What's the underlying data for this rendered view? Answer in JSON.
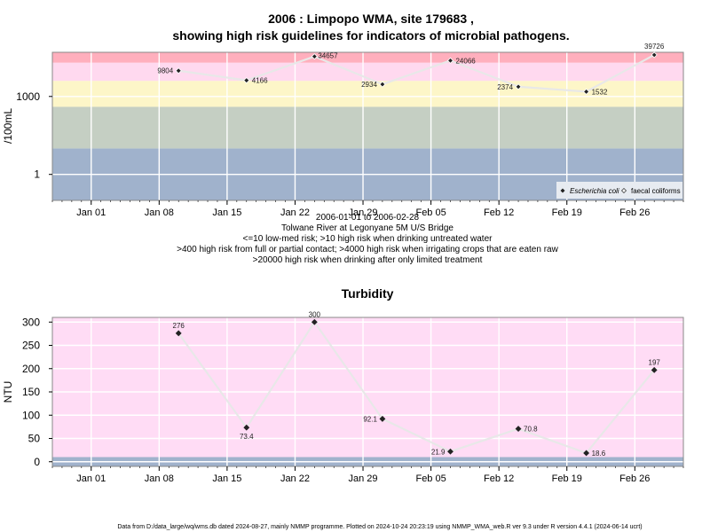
{
  "chart_data": [
    {
      "type": "scatter",
      "title_line1": "2006 : Limpopo WMA, site 179683 ,",
      "title_line2": "showing high risk guidelines for indicators of microbial pathogens.",
      "ylabel": "/100mL",
      "yscale": "log",
      "ylim": [
        0.1,
        50000
      ],
      "yticks": [
        {
          "value": 1,
          "label": "1"
        },
        {
          "value": 1000,
          "label": "1000"
        }
      ],
      "x_range": [
        "2005-12-28",
        "2006-03-03"
      ],
      "x_ticks": [
        {
          "date": "2006-01-01",
          "label": "Jan 01"
        },
        {
          "date": "2006-01-08",
          "label": "Jan 08"
        },
        {
          "date": "2006-01-15",
          "label": "Jan 15"
        },
        {
          "date": "2006-01-22",
          "label": "Jan 22"
        },
        {
          "date": "2006-01-29",
          "label": "Jan 29"
        },
        {
          "date": "2006-02-05",
          "label": "Feb 05"
        },
        {
          "date": "2006-02-12",
          "label": "Feb 12"
        },
        {
          "date": "2006-02-19",
          "label": "Feb 19"
        },
        {
          "date": "2006-02-26",
          "label": "Feb 26"
        }
      ],
      "bands": [
        {
          "from": 0.1,
          "to": 10,
          "color": "#a0b2cc"
        },
        {
          "from": 10,
          "to": 400,
          "color": "#c5cfc3"
        },
        {
          "from": 400,
          "to": 4000,
          "color": "#fdf6c8"
        },
        {
          "from": 4000,
          "to": 20000,
          "color": "#ffd9ef"
        },
        {
          "from": 20000,
          "to": 50000,
          "color": "#ffafbd"
        }
      ],
      "series": [
        {
          "name": "faecal coliforms",
          "marker": "open-diamond",
          "points": [
            {
              "x": "2006-01-10",
              "y": 9804,
              "label": "9804"
            },
            {
              "x": "2006-01-17",
              "y": 4166,
              "label": "4166"
            },
            {
              "x": "2006-01-24",
              "y": 34657,
              "label": "34657"
            },
            {
              "x": "2006-01-31",
              "y": 2934,
              "label": "2934"
            },
            {
              "x": "2006-02-07",
              "y": 24066,
              "label": "24066"
            },
            {
              "x": "2006-02-14",
              "y": 2374,
              "label": "2374"
            },
            {
              "x": "2006-02-21",
              "y": 1532,
              "label": "1532"
            },
            {
              "x": "2006-02-28",
              "y": 39726,
              "label": "39726"
            }
          ]
        }
      ],
      "legend": {
        "placement": "bottom-right",
        "items": [
          {
            "label": "Escherichia coli",
            "marker": "filled-diamond",
            "italic": true
          },
          {
            "label": "faecal coliforms",
            "marker": "open-diamond",
            "italic": false
          }
        ]
      },
      "caption_lines": [
        "2006-01-01 to 2006-02-28",
        "Tolwane River at Legonyane 5M U/S Bridge",
        "<=10 low-med risk; >10 high risk when drinking untreated water",
        ">400 high risk from full or partial contact; >4000 high risk when irrigating crops that are eaten raw",
        ">20000 high risk when drinking after only limited treatment"
      ]
    },
    {
      "type": "scatter",
      "title": "Turbidity",
      "ylabel": "NTU",
      "yscale": "linear",
      "ylim": [
        -10,
        310
      ],
      "yticks": [
        {
          "value": 0,
          "label": "0"
        },
        {
          "value": 50,
          "label": "50"
        },
        {
          "value": 100,
          "label": "100"
        },
        {
          "value": 150,
          "label": "150"
        },
        {
          "value": 200,
          "label": "200"
        },
        {
          "value": 250,
          "label": "250"
        },
        {
          "value": 300,
          "label": "300"
        }
      ],
      "x_range": [
        "2005-12-28",
        "2006-03-03"
      ],
      "x_ticks": [
        {
          "date": "2006-01-01",
          "label": "Jan 01"
        },
        {
          "date": "2006-01-08",
          "label": "Jan 08"
        },
        {
          "date": "2006-01-15",
          "label": "Jan 15"
        },
        {
          "date": "2006-01-22",
          "label": "Jan 22"
        },
        {
          "date": "2006-01-29",
          "label": "Jan 29"
        },
        {
          "date": "2006-02-05",
          "label": "Feb 05"
        },
        {
          "date": "2006-02-12",
          "label": "Feb 12"
        },
        {
          "date": "2006-02-19",
          "label": "Feb 19"
        },
        {
          "date": "2006-02-26",
          "label": "Feb 26"
        }
      ],
      "bands": [
        {
          "from": -10,
          "to": 10,
          "color": "#a0b2cc"
        },
        {
          "from": 10,
          "to": 310,
          "color": "#ffdcf5"
        }
      ],
      "series": [
        {
          "marker": "filled-diamond",
          "points": [
            {
              "x": "2006-01-10",
              "y": 276,
              "label": "276",
              "label_pos": "above"
            },
            {
              "x": "2006-01-17",
              "y": 73.4,
              "label": "73.4",
              "label_pos": "below"
            },
            {
              "x": "2006-01-24",
              "y": 300,
              "label": "300",
              "label_pos": "above"
            },
            {
              "x": "2006-01-31",
              "y": 92.1,
              "label": "92.1",
              "label_pos": "left"
            },
            {
              "x": "2006-02-07",
              "y": 21.9,
              "label": "21.9",
              "label_pos": "left"
            },
            {
              "x": "2006-02-14",
              "y": 70.8,
              "label": "70.8",
              "label_pos": "right"
            },
            {
              "x": "2006-02-21",
              "y": 18.6,
              "label": "18.6",
              "label_pos": "right"
            },
            {
              "x": "2006-02-28",
              "y": 197,
              "label": "197",
              "label_pos": "above"
            }
          ]
        }
      ]
    }
  ],
  "footer": "Data from D:/data_large/wq/wms.db dated 2024-08-27, mainly NMMP programme. Plotted on 2024-10-24 20:23:19 using NMMP_WMA_web.R ver 9.3 under R version 4.4.1 (2024-06-14 ucrt)"
}
